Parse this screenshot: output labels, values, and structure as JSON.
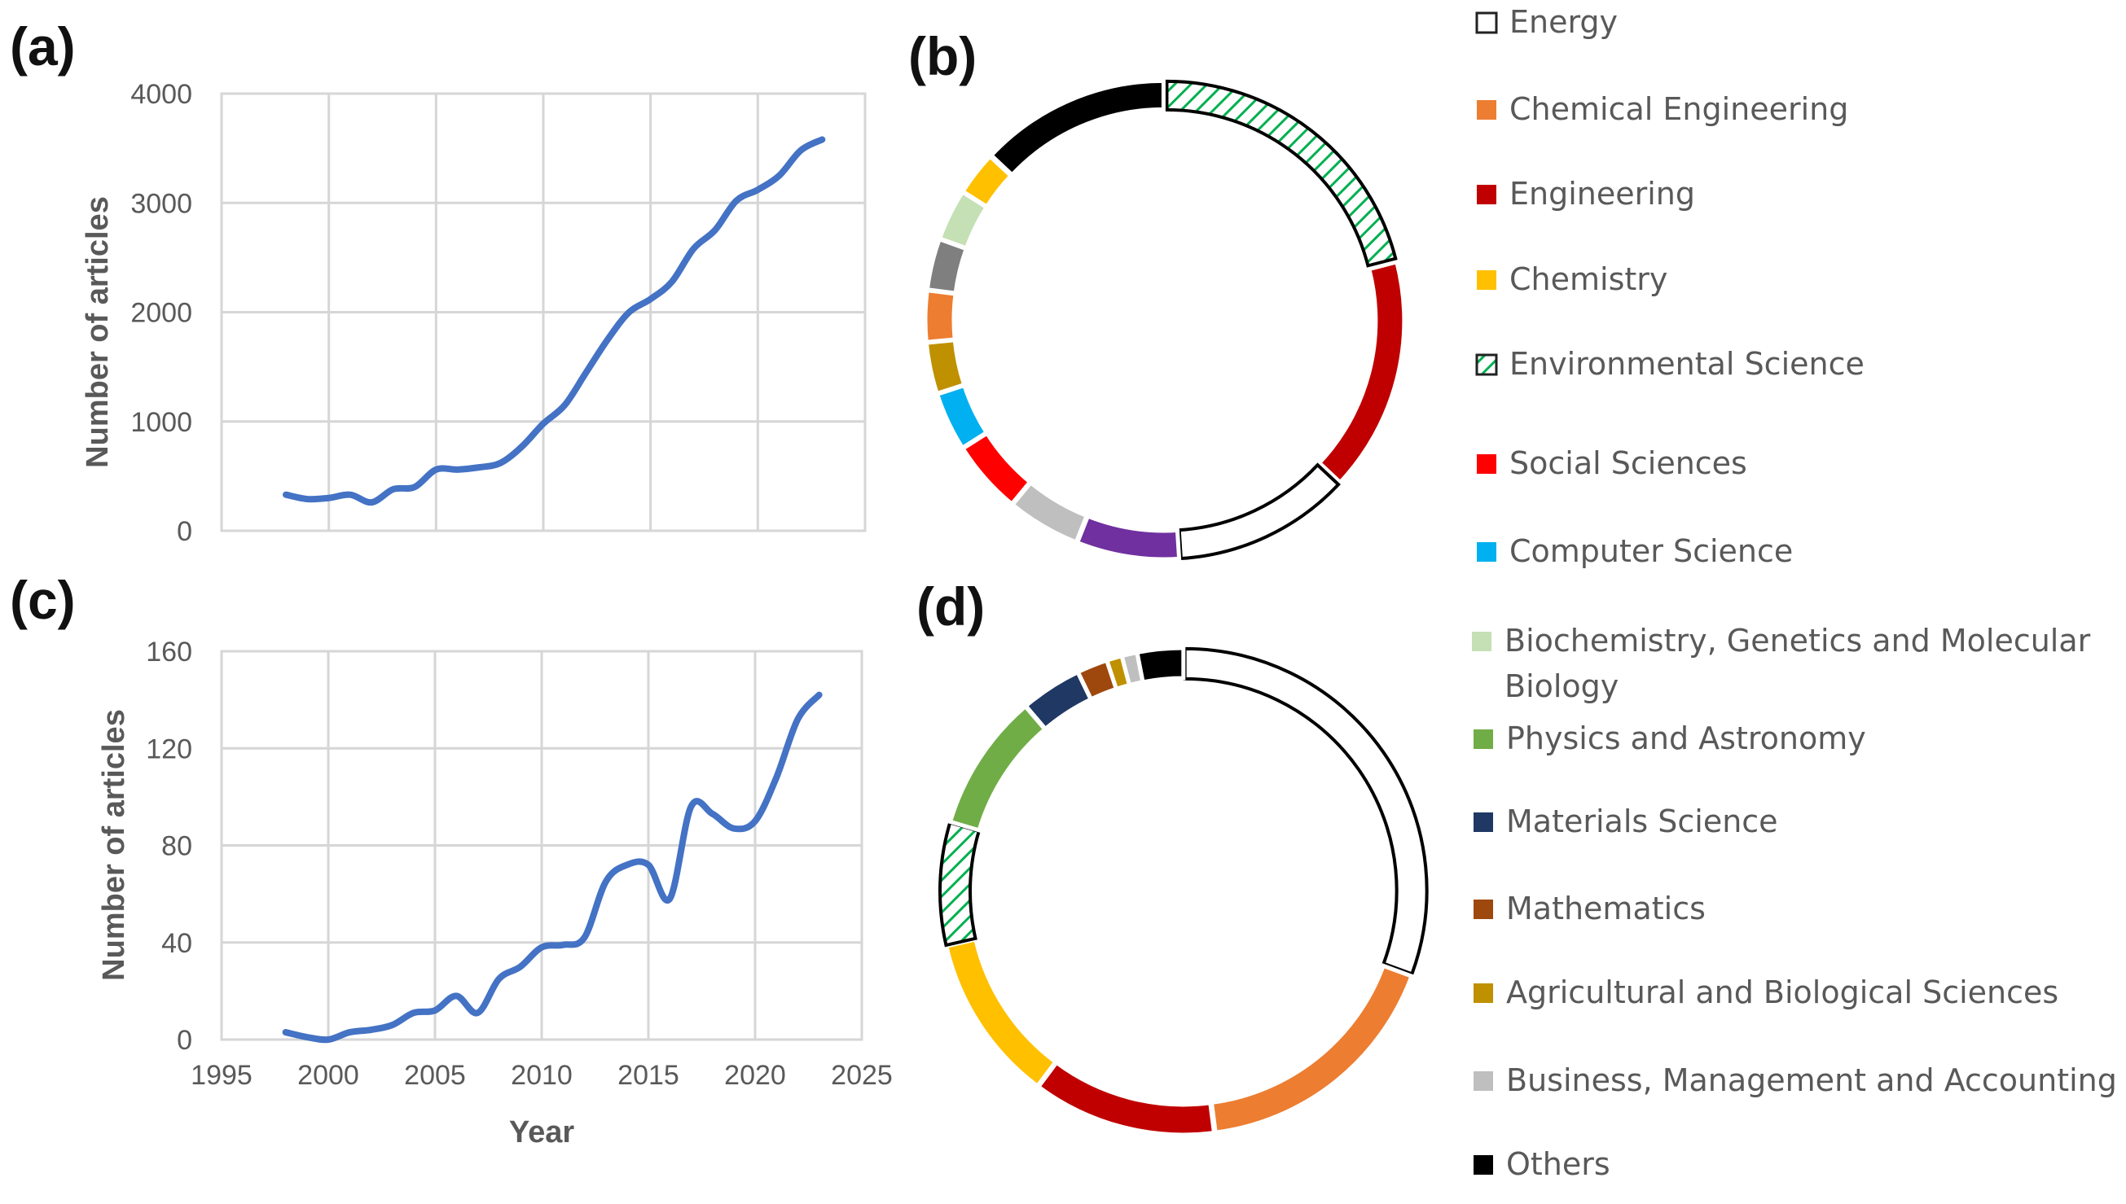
{
  "panel_labels": [
    "(a)",
    "(b)",
    "(c)",
    "(d)"
  ],
  "legend_bullet_colors": [
    "#ffffff",
    "#ed7d31",
    "#c00000",
    "#ffc000",
    "hatch",
    "#ff0000",
    "#00b0f0",
    "#c5e0b4",
    "#70ad47",
    "#1f3864",
    "#9e480e",
    "#bf9000",
    "#bfbfbf",
    "#000000"
  ],
  "chart_data": [
    {
      "type": "line",
      "panel": "(a)",
      "title": "",
      "xlabel": "",
      "ylabel": "Number of articles",
      "xlim": [
        1995,
        2025
      ],
      "ylim": [
        0,
        4000
      ],
      "x_ticks": [
        "1995",
        "2000",
        "2005",
        "2010",
        "2015",
        "2020",
        "2025"
      ],
      "y_ticks": [
        "0",
        "1000",
        "2000",
        "3000",
        "4000"
      ],
      "grid": true,
      "series": [
        {
          "name": "articles",
          "color": "#4472c4",
          "x": [
            1998,
            1999,
            2000,
            2001,
            2002,
            2003,
            2004,
            2005,
            2006,
            2007,
            2008,
            2009,
            2010,
            2011,
            2012,
            2013,
            2014,
            2015,
            2016,
            2017,
            2018,
            2019,
            2020,
            2021,
            2022,
            2023
          ],
          "values": [
            330,
            290,
            300,
            330,
            260,
            380,
            400,
            560,
            560,
            580,
            620,
            770,
            980,
            1150,
            1450,
            1750,
            2000,
            2120,
            2280,
            2580,
            2750,
            3020,
            3120,
            3250,
            3480,
            3580
          ]
        }
      ]
    },
    {
      "type": "pie",
      "panel": "(b)",
      "donut": true,
      "categories": [
        "Environmental Science",
        "Engineering",
        "Energy",
        "Physics and Astronomy",
        "Business, Management and Accounting",
        "Social Sciences",
        "Computer Science",
        "Agricultural and Biological Sciences",
        "Chemical Engineering",
        "Materials Science",
        "Biochemistry, Genetics and Molecular Biology",
        "Chemistry",
        "Others"
      ],
      "values": [
        21,
        16,
        12,
        7,
        5,
        5,
        4,
        3.5,
        3.5,
        3.5,
        3.5,
        3,
        13
      ],
      "colors": [
        "hatch",
        "#c00000",
        "#ffffff",
        "#7030a0",
        "#bfbfbf",
        "#ff0000",
        "#00b0f0",
        "#bf9000",
        "#ed7d31",
        "#7f7f7f",
        "#c5e0b4",
        "#ffc000",
        "#000000"
      ]
    },
    {
      "type": "line",
      "panel": "(c)",
      "title": "",
      "xlabel": "Year",
      "ylabel": "Number of articles",
      "xlim": [
        1995,
        2025
      ],
      "ylim": [
        0,
        160
      ],
      "x_ticks": [
        "1995",
        "2000",
        "2005",
        "2010",
        "2015",
        "2020",
        "2025"
      ],
      "y_ticks": [
        "0",
        "40",
        "80",
        "120",
        "160"
      ],
      "grid": true,
      "series": [
        {
          "name": "articles",
          "color": "#4472c4",
          "x": [
            1998,
            1999,
            2000,
            2001,
            2002,
            2003,
            2004,
            2005,
            2006,
            2007,
            2008,
            2009,
            2010,
            2011,
            2012,
            2013,
            2014,
            2015,
            2016,
            2017,
            2018,
            2019,
            2020,
            2021,
            2022,
            2023
          ],
          "values": [
            3,
            1,
            0,
            3,
            4,
            6,
            11,
            12,
            18,
            11,
            25,
            30,
            38,
            39,
            42,
            65,
            72,
            72,
            58,
            96,
            93,
            87,
            90,
            108,
            132,
            142
          ]
        }
      ]
    },
    {
      "type": "pie",
      "panel": "(d)",
      "donut": true,
      "categories": [
        "Energy",
        "Chemical Engineering",
        "Engineering",
        "Chemistry",
        "Environmental Science",
        "Physics and Astronomy",
        "Materials Science",
        "Mathematics",
        "Agricultural and Biological Sciences",
        "Business, Management and Accounting",
        "Others"
      ],
      "values": [
        30,
        17,
        12,
        11,
        8,
        9,
        4,
        2,
        1,
        1,
        3
      ],
      "colors": [
        "#ffffff",
        "#ed7d31",
        "#c00000",
        "#ffc000",
        "hatch",
        "#70ad47",
        "#1f3864",
        "#9e480e",
        "#bf9000",
        "#bfbfbf",
        "#000000"
      ]
    }
  ],
  "legend": [
    {
      "label": "Energy"
    },
    {
      "label": "Chemical Engineering"
    },
    {
      "label": "Engineering"
    },
    {
      "label": "Chemistry"
    },
    {
      "label": "Environmental Science"
    },
    {
      "label": "Social Sciences"
    },
    {
      "label": "Computer Science"
    },
    {
      "label": "Biochemistry, Genetics and Molecular",
      "label2": "Biology"
    },
    {
      "label": "Physics and Astronomy"
    },
    {
      "label": "Materials Science"
    },
    {
      "label": "Mathematics"
    },
    {
      "label": "Agricultural and Biological Sciences"
    },
    {
      "label": "Business, Management and Accounting"
    },
    {
      "label": "Others"
    }
  ]
}
